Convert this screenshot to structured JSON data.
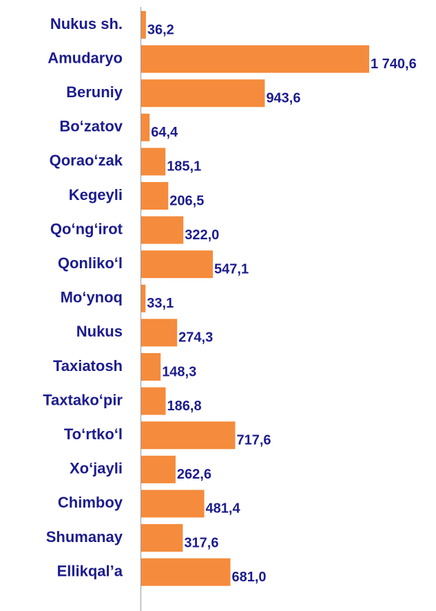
{
  "chart_data": {
    "type": "barh",
    "categories": [
      "Nukus sh.",
      "Amudaryo",
      "Beruniy",
      "Bo‘zatov",
      "Qorao‘zak",
      "Kegeyli",
      "Qo‘ng‘irot",
      "Qonliko‘l",
      "Mo‘ynoq",
      "Nukus",
      "Taxiatosh",
      "Taxtako‘pir",
      "To‘rtko‘l",
      "Xo‘jayli",
      "Chimboy",
      "Shumanay",
      "Ellikqal’a"
    ],
    "values": [
      36.2,
      1740.6,
      943.6,
      64.4,
      185.1,
      206.5,
      322.0,
      547.1,
      33.1,
      274.3,
      148.3,
      186.8,
      717.6,
      262.6,
      481.4,
      317.6,
      681.0
    ],
    "value_labels": [
      "36,2",
      "1 740,6",
      "943,6",
      "64,4",
      "185,1",
      "206,5",
      "322,0",
      "547,1",
      "33,1",
      "274,3",
      "148,3",
      "186,8",
      "717,6",
      "262,6",
      "481,4",
      "317,6",
      "681,0"
    ],
    "color": "#f58b3c"
  }
}
